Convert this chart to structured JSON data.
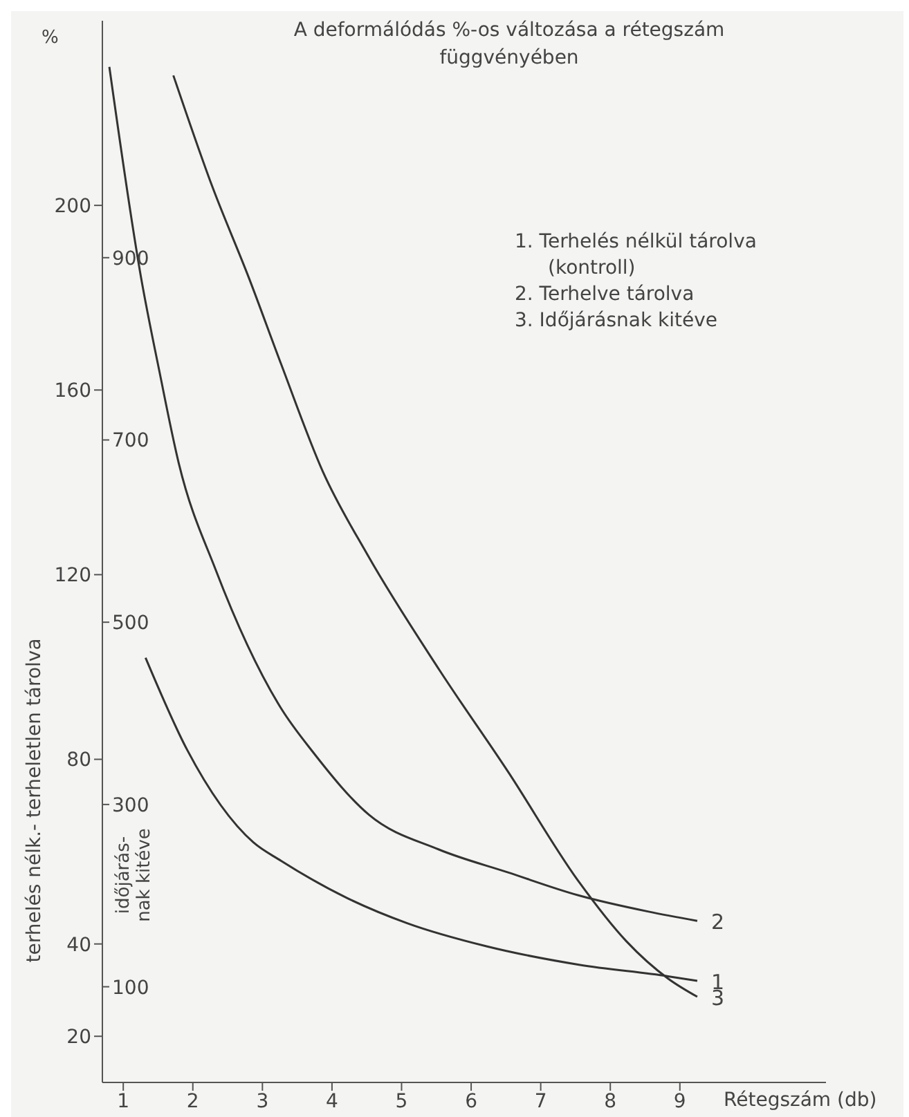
{
  "chart_data": {
    "type": "line",
    "title": "A deformálódás %-os változása a rétegszám függvényében",
    "xlabel": "Rétegszám (db)",
    "ylabel": "terhelés nélk.- terheletlen tárolva",
    "y2label": "időjárás-\nnak kitéve",
    "annotations": [
      "%",
      "1. Terhelés nélkül tárolva (kontroll)",
      "2. Terhelve tárolva",
      "3. Időjárásnak kitéve"
    ],
    "xlim": [
      0.7,
      11.1
    ],
    "xticks": [
      1,
      2,
      3,
      4,
      5,
      6,
      7,
      8,
      9
    ],
    "ylim": [
      10,
      240
    ],
    "yticks": [
      20,
      40,
      80,
      120,
      160,
      200
    ],
    "y2lim": [
      -5,
      1160
    ],
    "y2ticks": [
      100,
      300,
      500,
      700,
      900
    ],
    "grid": false,
    "marker": "none",
    "line_style": "solid",
    "series": [
      {
        "name": "1",
        "color": "#333333",
        "x": [
          1.32,
          1.92,
          2.87,
          3.27,
          4.21,
          5.08,
          6.22,
          7.55,
          8.83,
          9.25
        ],
        "values": [
          102,
          82,
          62,
          58,
          50,
          44.5,
          39.5,
          35.5,
          33,
          32
        ]
      },
      {
        "name": "2",
        "color": "#333333",
        "x": [
          0.8,
          1.26,
          1.52,
          1.8,
          2.33,
          3.27,
          3.73,
          4.53,
          5.53,
          6.53,
          7.55,
          8.55,
          9.25
        ],
        "values": [
          230,
          184,
          164,
          144,
          121,
          91,
          81.5,
          68,
          60.5,
          55.5,
          50.5,
          47,
          45
        ]
      },
      {
        "name": "3",
        "color": "#333333",
        "axis": "y2",
        "x": [
          1.72,
          2.27,
          2.81,
          3.27,
          3.87,
          4.51,
          5.54,
          6.53,
          7.55,
          8.23,
          8.83,
          9.25
        ],
        "values": [
          1100,
          980,
          877,
          783,
          665,
          574,
          448,
          336,
          215,
          150,
          109,
          89
        ]
      }
    ]
  }
}
